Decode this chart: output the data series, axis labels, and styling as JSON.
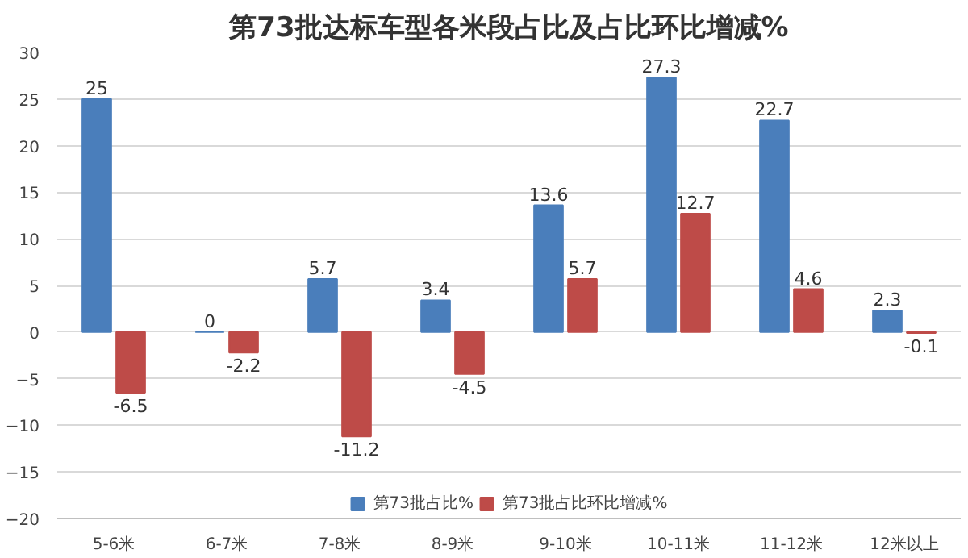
{
  "chart_data": {
    "type": "bar",
    "title": "第73批达标车型各米段占比及占比环比增减%",
    "categories": [
      "5-6米",
      "6-7米",
      "7-8米",
      "8-9米",
      "9-10米",
      "10-11米",
      "11-12米",
      "12米以上"
    ],
    "series": [
      {
        "name": "第73批占比%",
        "color": "#4a7ebb",
        "values": [
          25,
          0,
          5.7,
          3.4,
          13.6,
          27.3,
          22.7,
          2.3
        ]
      },
      {
        "name": "第73批占比环比增减%",
        "color": "#be4b48",
        "values": [
          -6.5,
          -2.2,
          -11.2,
          -4.5,
          5.7,
          12.7,
          4.6,
          -0.1
        ]
      }
    ],
    "ylim": [
      -20,
      30
    ],
    "yticks": [
      -20,
      -15,
      -10,
      -5,
      0,
      5,
      10,
      15,
      20,
      25,
      30
    ],
    "grid": "y",
    "legend": "bottom",
    "data_labels": true
  }
}
